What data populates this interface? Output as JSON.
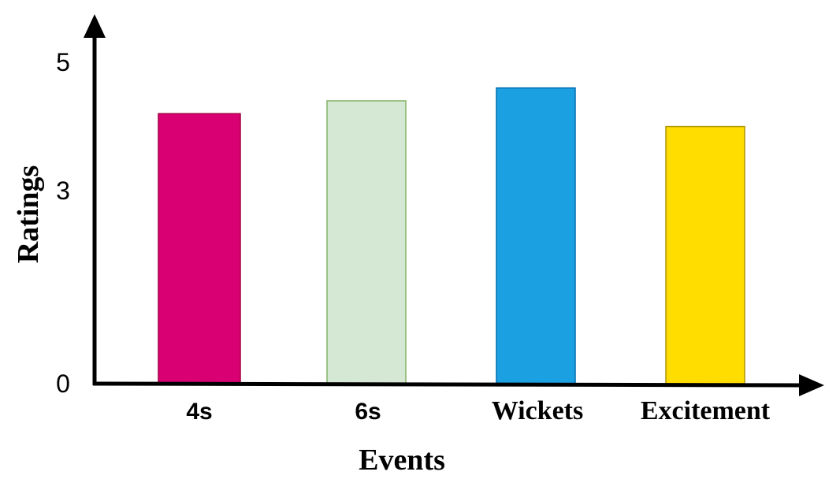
{
  "chart_data": {
    "type": "bar",
    "title": "",
    "xlabel": "Events",
    "ylabel": "Ratings",
    "categories": [
      "4s",
      "6s",
      "Wickets",
      "Excitement"
    ],
    "values": [
      4.2,
      4.4,
      4.6,
      4.0
    ],
    "ylim": [
      0,
      5.5
    ],
    "yticks": [
      {
        "value": 0,
        "label": "0"
      },
      {
        "value": 3,
        "label": "3"
      },
      {
        "value": 5,
        "label": "5"
      }
    ],
    "bar_colors": [
      "#D80073",
      "#D5E8D4",
      "#1BA1E2",
      "#FFDD00"
    ],
    "bar_border_colors": [
      "#A50040",
      "#82B366",
      "#006EAF",
      "#B09500"
    ],
    "grid": false,
    "legend": "none"
  }
}
